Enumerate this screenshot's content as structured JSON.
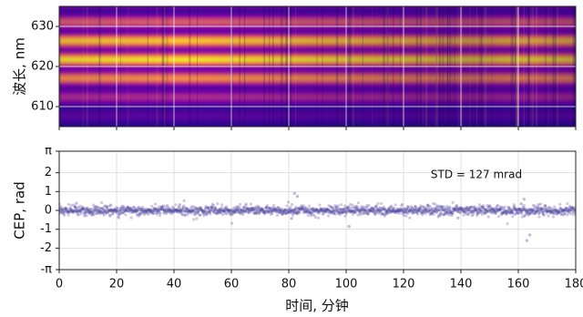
{
  "chart_data": [
    {
      "type": "heatmap",
      "ylabel": "波长, nm",
      "xlim": [
        0,
        180
      ],
      "ylim": [
        605,
        635
      ],
      "yticks": [
        610,
        620,
        630
      ],
      "colormap": "plasma",
      "fringe_period_nm": 4.8,
      "grid": true
    },
    {
      "type": "scatter",
      "xlabel": "时间, 分钟",
      "ylabel": "CEP, rad",
      "xlim": [
        0,
        180
      ],
      "ylim": [
        -3.1416,
        3.1416
      ],
      "xticks": [
        0,
        20,
        40,
        60,
        80,
        100,
        120,
        140,
        160,
        180
      ],
      "yticks": [
        {
          "value": 3.1416,
          "label": "π"
        },
        {
          "value": 2,
          "label": "2"
        },
        {
          "value": 1,
          "label": "1"
        },
        {
          "value": 0,
          "label": "0"
        },
        {
          "value": -1,
          "label": "-1"
        },
        {
          "value": -2,
          "label": "-2"
        },
        {
          "value": -3.1416,
          "label": "-π"
        }
      ],
      "annotation": "STD = 127 mrad",
      "std_mrad": 127,
      "marker_color": "#4a3f9f",
      "grid": true
    }
  ]
}
